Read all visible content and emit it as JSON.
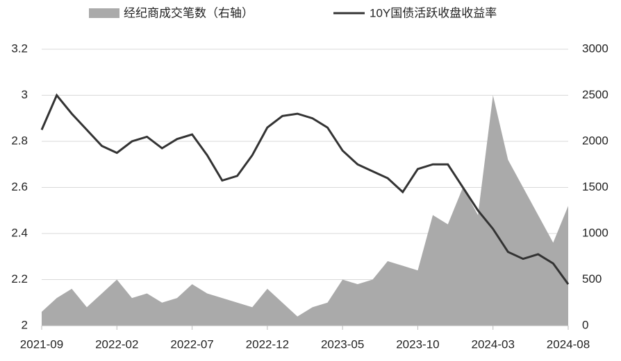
{
  "chart_data": {
    "type": "line-area",
    "categories": [
      "2021-09",
      null,
      null,
      null,
      null,
      "2022-02",
      null,
      null,
      null,
      null,
      "2022-07",
      null,
      null,
      null,
      null,
      "2022-12",
      null,
      null,
      null,
      null,
      "2023-05",
      null,
      null,
      null,
      null,
      "2023-10",
      null,
      null,
      null,
      null,
      "2024-03",
      null,
      null,
      null,
      null,
      "2024-08"
    ],
    "series": [
      {
        "name": "经纪商成交笔数（右轴）",
        "color": "#aaaaaa",
        "axis": "y2",
        "kind": "area",
        "values": [
          150,
          300,
          400,
          200,
          350,
          500,
          300,
          350,
          250,
          300,
          450,
          350,
          300,
          250,
          200,
          400,
          250,
          100,
          200,
          250,
          500,
          450,
          500,
          700,
          650,
          600,
          1200,
          1100,
          1500,
          1200,
          2500,
          1800,
          1500,
          1200,
          900,
          1300
        ]
      },
      {
        "name": "10Y国债活跃收盘收益率",
        "color": "#333333",
        "axis": "y",
        "kind": "line",
        "values": [
          2.85,
          3.0,
          2.92,
          2.85,
          2.78,
          2.75,
          2.8,
          2.82,
          2.77,
          2.81,
          2.83,
          2.74,
          2.63,
          2.65,
          2.74,
          2.86,
          2.91,
          2.92,
          2.9,
          2.86,
          2.76,
          2.7,
          2.67,
          2.64,
          2.58,
          2.68,
          2.7,
          2.7,
          2.6,
          2.5,
          2.42,
          2.32,
          2.29,
          2.31,
          2.27,
          2.18
        ]
      }
    ],
    "ylim": [
      2,
      3.2
    ],
    "yticks": [
      2,
      2.2,
      2.4,
      2.6,
      2.8,
      3,
      3.2
    ],
    "y2lim": [
      0,
      3000
    ],
    "y2ticks": [
      0,
      500,
      1000,
      1500,
      2000,
      2500,
      3000
    ],
    "grid": true
  }
}
